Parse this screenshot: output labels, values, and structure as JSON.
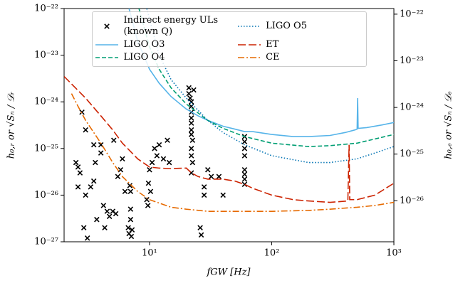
{
  "chart_data": {
    "type": "line",
    "xlabel": "fGW [Hz]",
    "ylabel": "h₀,ᵣ or √Sₙ / 𝒟ᵣ",
    "y2label": "h₀,ₑ or √Sₙ / 𝒟ₑ",
    "xscale": "log",
    "yscale": "log",
    "xlim": [
      2,
      1000
    ],
    "ylim": [
      1e-27,
      1e-22
    ],
    "y2lim": [
      1.32e-27,
      1.32e-22
    ],
    "xticks": [
      {
        "value": 10,
        "label": "10¹"
      },
      {
        "value": 100,
        "label": "10²"
      },
      {
        "value": 1000,
        "label": "10³"
      }
    ],
    "yticks": [
      {
        "value": 1e-27,
        "label": "10⁻²⁷"
      },
      {
        "value": 1e-26,
        "label": "10⁻²⁶"
      },
      {
        "value": 1e-25,
        "label": "10⁻²⁵"
      },
      {
        "value": 1e-24,
        "label": "10⁻²⁴"
      },
      {
        "value": 1e-23,
        "label": "10⁻²³"
      },
      {
        "value": 1e-22,
        "label": "10⁻²²"
      }
    ],
    "y2ticks": [
      {
        "value": 1e-26,
        "label": "10⁻²⁶"
      },
      {
        "value": 1e-25,
        "label": "10⁻²⁵"
      },
      {
        "value": 1e-24,
        "label": "10⁻²⁴"
      },
      {
        "value": 1e-23,
        "label": "10⁻²³"
      },
      {
        "value": 1e-22,
        "label": "10⁻²²"
      }
    ],
    "legend": "upper center",
    "series": [
      {
        "name": "Indirect energy ULs (known Q)",
        "type": "scatter",
        "marker": "x",
        "color": "#000000",
        "x": [
          2.5,
          2.6,
          2.7,
          2.8,
          2.6,
          3,
          3,
          2.9,
          3.1,
          3.3,
          3.5,
          3.5,
          3.6,
          3.7,
          4,
          4,
          4.2,
          4.3,
          4.5,
          4.7,
          5,
          5.1,
          5.3,
          5.5,
          5.8,
          6,
          6.3,
          6.7,
          6.8,
          7,
          7,
          7,
          6.9,
          7.2,
          7.1,
          9.5,
          9.7,
          9.8,
          10,
          10.2,
          10.5,
          11,
          11.5,
          12,
          13,
          14,
          14.5,
          21,
          21.5,
          22,
          22,
          22,
          22,
          22,
          22,
          22,
          22.5,
          22,
          22,
          22.5,
          22,
          21,
          23,
          26,
          26.5,
          28,
          28,
          30,
          32,
          37,
          40,
          60,
          60,
          60,
          60,
          60,
          60,
          60,
          60
        ],
        "values": [
          5e-26,
          4e-26,
          3e-26,
          6e-25,
          1.5e-26,
          2.5e-25,
          1e-26,
          2e-27,
          1.2e-27,
          1.5e-26,
          2e-26,
          1.2e-25,
          5e-26,
          3e-27,
          8e-26,
          1.2e-25,
          6e-27,
          2e-27,
          4.5e-27,
          3.5e-27,
          4.5e-27,
          1.5e-25,
          4e-27,
          2.5e-26,
          3.5e-26,
          6e-26,
          1.2e-26,
          2e-27,
          1.5e-27,
          1.2e-26,
          5e-27,
          3e-27,
          1.6e-26,
          1.8e-27,
          1.3e-27,
          8e-27,
          6e-27,
          1.8e-26,
          3.5e-26,
          1.2e-26,
          5e-26,
          1e-25,
          7e-26,
          1.2e-25,
          6e-26,
          1.5e-25,
          5e-26,
          2e-24,
          1.2e-24,
          1e-24,
          8e-25,
          6e-25,
          4.5e-25,
          3.5e-25,
          2.5e-25,
          2e-25,
          1.5e-25,
          1e-25,
          7e-26,
          5e-26,
          3e-26,
          1.5e-24,
          1.8e-24,
          2e-27,
          1.4e-27,
          1.5e-26,
          1e-26,
          3.5e-26,
          2.5e-26,
          2.5e-26,
          1e-26,
          1.8e-25,
          1.4e-25,
          1e-25,
          7e-26,
          3.5e-26,
          2.8e-26,
          2.2e-26,
          1.7e-26
        ]
      },
      {
        "name": "LIGO O3",
        "color": "#56b4e9",
        "style": "solid",
        "x": [
          6.8,
          8,
          10,
          12,
          15,
          20,
          25,
          30,
          40,
          50,
          60,
          70,
          100,
          150,
          200,
          300,
          400,
          480,
          500,
          505,
          510,
          600,
          800,
          1000
        ],
        "values": [
          1e-22,
          2e-23,
          5e-24,
          2.5e-24,
          1.3e-24,
          7e-25,
          5e-25,
          4e-25,
          3e-25,
          2.6e-25,
          2.3e-25,
          2.3e-25,
          2e-25,
          1.8e-25,
          1.8e-25,
          1.9e-25,
          2.2e-25,
          2.5e-25,
          2.6e-25,
          1.2e-24,
          2.7e-25,
          2.8e-25,
          3.2e-25,
          3.6e-25
        ]
      },
      {
        "name": "LIGO O4",
        "color": "#009e73",
        "style": "dashed",
        "x": [
          8.2,
          10,
          12,
          15,
          20,
          30,
          40,
          60,
          100,
          200,
          300,
          500,
          700,
          1000
        ],
        "values": [
          1e-22,
          1.5e-23,
          5e-24,
          2e-24,
          9e-25,
          4e-25,
          2.7e-25,
          1.8e-25,
          1.3e-25,
          1.1e-25,
          1.15e-25,
          1.3e-25,
          1.6e-25,
          2e-25
        ]
      },
      {
        "name": "LIGO O5",
        "color": "#0072b2",
        "style": "dotted",
        "x": [
          9.5,
          12,
          15,
          20,
          30,
          40,
          60,
          100,
          200,
          300,
          500,
          700,
          1000
        ],
        "values": [
          1e-22,
          1e-23,
          3e-24,
          1.2e-24,
          4e-25,
          2.2e-25,
          1.2e-25,
          7e-26,
          5e-26,
          5e-26,
          6e-26,
          8e-26,
          1.1e-25
        ]
      },
      {
        "name": "ET",
        "color": "#cc2200",
        "style": "longdash",
        "x": [
          2,
          3,
          4,
          5,
          6,
          8,
          10,
          12,
          15,
          20,
          22,
          25,
          30,
          40,
          50,
          60,
          70,
          100,
          150,
          200,
          300,
          420,
          430,
          435,
          500,
          700,
          1000
        ],
        "values": [
          3.5e-24,
          1.2e-24,
          5e-25,
          2.5e-25,
          1.3e-25,
          6e-26,
          4e-26,
          3.8e-26,
          3.7e-26,
          3.8e-26,
          3e-26,
          2.5e-26,
          2.2e-26,
          2.2e-26,
          2e-26,
          1.7e-26,
          1.4e-26,
          1e-26,
          8e-27,
          7.5e-27,
          7e-27,
          7.5e-27,
          1.2e-25,
          8e-27,
          8e-27,
          1e-26,
          1.8e-26
        ]
      },
      {
        "name": "CE",
        "color": "#e66a00",
        "style": "dashdot",
        "x": [
          2.3,
          2.6,
          3,
          4,
          5,
          6,
          8,
          10,
          15,
          20,
          30,
          50,
          100,
          200,
          300,
          500,
          700,
          1000
        ],
        "values": [
          1.5e-24,
          8e-25,
          4e-25,
          1.3e-25,
          5e-26,
          2.5e-26,
          1.2e-26,
          8e-27,
          5.5e-27,
          5e-27,
          4.5e-27,
          4.5e-27,
          4.5e-27,
          4.7e-27,
          5e-27,
          5.5e-27,
          6e-27,
          7e-27
        ]
      }
    ]
  }
}
